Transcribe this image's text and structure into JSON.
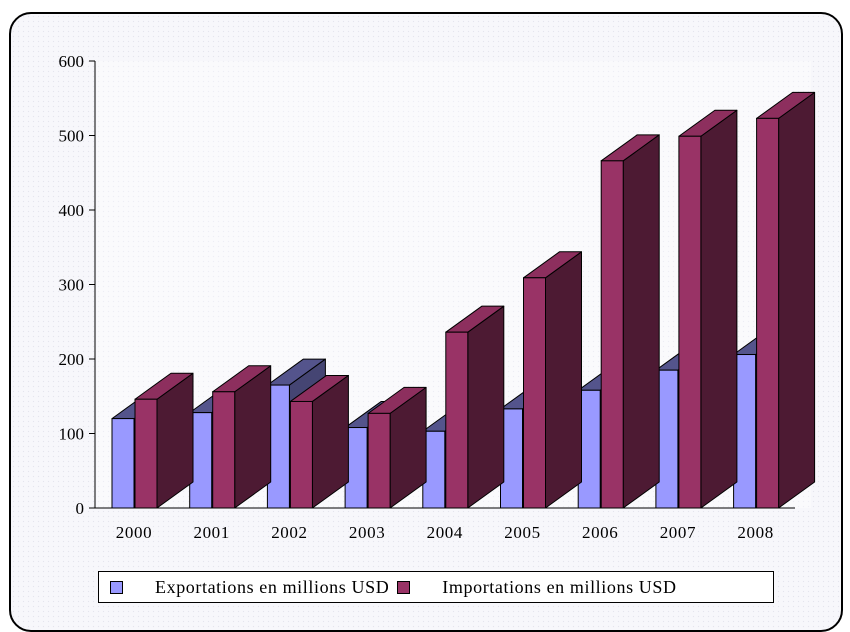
{
  "chart_data": {
    "type": "bar",
    "categories": [
      "2000",
      "2001",
      "2002",
      "2003",
      "2004",
      "2005",
      "2006",
      "2007",
      "2008"
    ],
    "series": [
      {
        "name": "Exportations en millions USD",
        "values": [
          120,
          128,
          165,
          108,
          103,
          133,
          158,
          185,
          206
        ],
        "color": "#9999ff"
      },
      {
        "name": "Importations en millions USD",
        "values": [
          146,
          156,
          143,
          127,
          236,
          309,
          466,
          499,
          523
        ],
        "color": "#993366"
      }
    ],
    "ylim": [
      0,
      600
    ],
    "yticks": [
      "0",
      "100",
      "200",
      "300",
      "400",
      "500",
      "600"
    ],
    "title": "",
    "xlabel": "",
    "ylabel": "",
    "legend_position": "bottom",
    "grid": false,
    "style": "3d-clustered-column"
  }
}
